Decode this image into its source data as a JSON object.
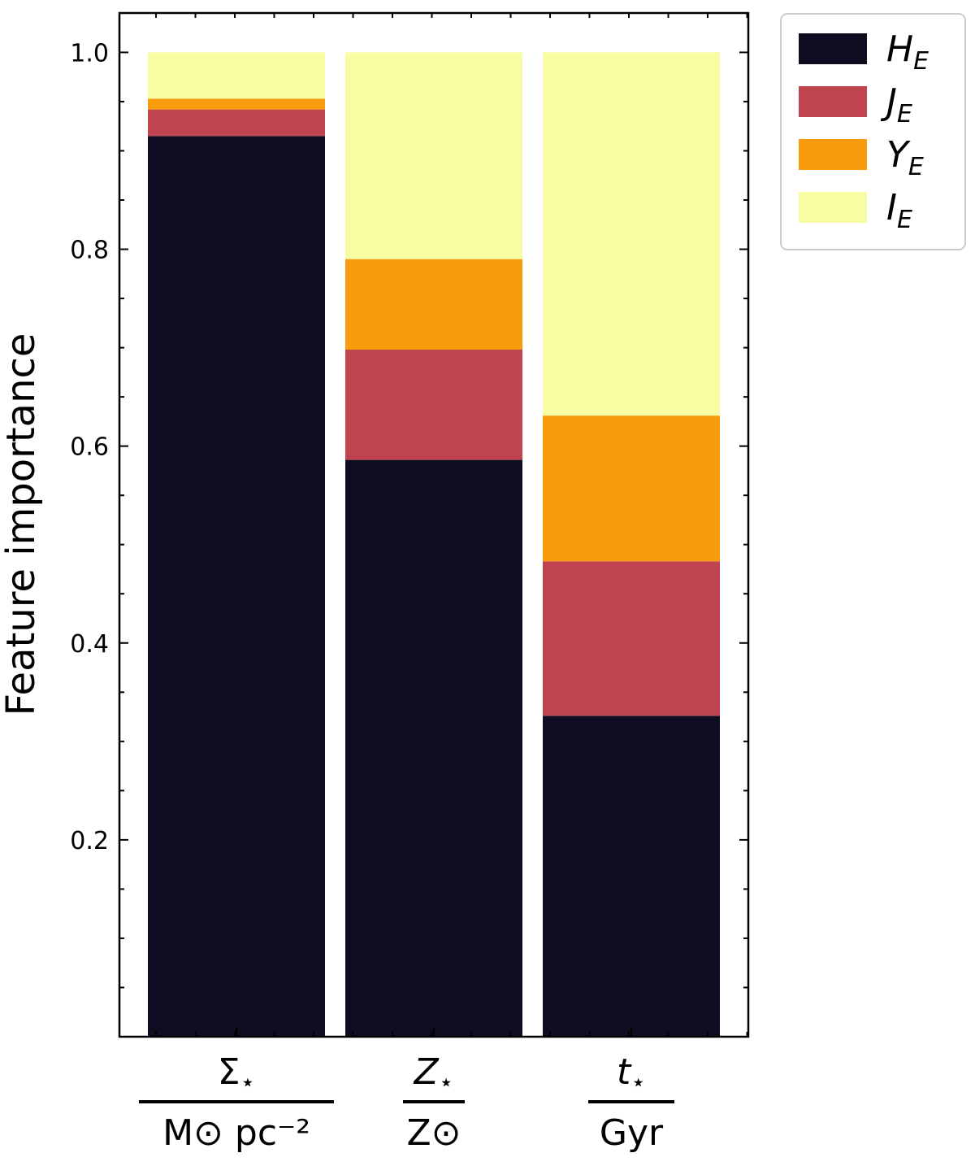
{
  "chart_data": {
    "type": "bar",
    "stacked": true,
    "categories": [
      {
        "numerator": "Σ",
        "numerator_sub": "⋆",
        "denominator": "M⊙ pc⁻²"
      },
      {
        "numerator": "Z",
        "numerator_sub": "⋆",
        "denominator": "Z⊙"
      },
      {
        "numerator": "t",
        "numerator_sub": "⋆",
        "denominator": "Gyr"
      }
    ],
    "series": [
      {
        "name": "H",
        "name_sub": "E",
        "color": "#0f0d22",
        "values": [
          0.915,
          0.586,
          0.326
        ]
      },
      {
        "name": "J",
        "name_sub": "E",
        "color": "#c0444f",
        "values": [
          0.027,
          0.112,
          0.157
        ]
      },
      {
        "name": "Y",
        "name_sub": "E",
        "color": "#f89c0e",
        "values": [
          0.011,
          0.092,
          0.148
        ]
      },
      {
        "name": "I",
        "name_sub": "E",
        "color": "#f8fca3",
        "values": [
          0.047,
          0.21,
          0.369
        ]
      }
    ],
    "ylabel": "Feature importance",
    "ylim": [
      0,
      1.04
    ],
    "yticks": [
      0.2,
      0.4,
      0.6,
      0.8,
      1.0
    ],
    "ytick_labels": [
      "0.2",
      "0.4",
      "0.6",
      "0.8",
      "1.0"
    ],
    "legend_position": "outside upper right",
    "grid": false
  }
}
